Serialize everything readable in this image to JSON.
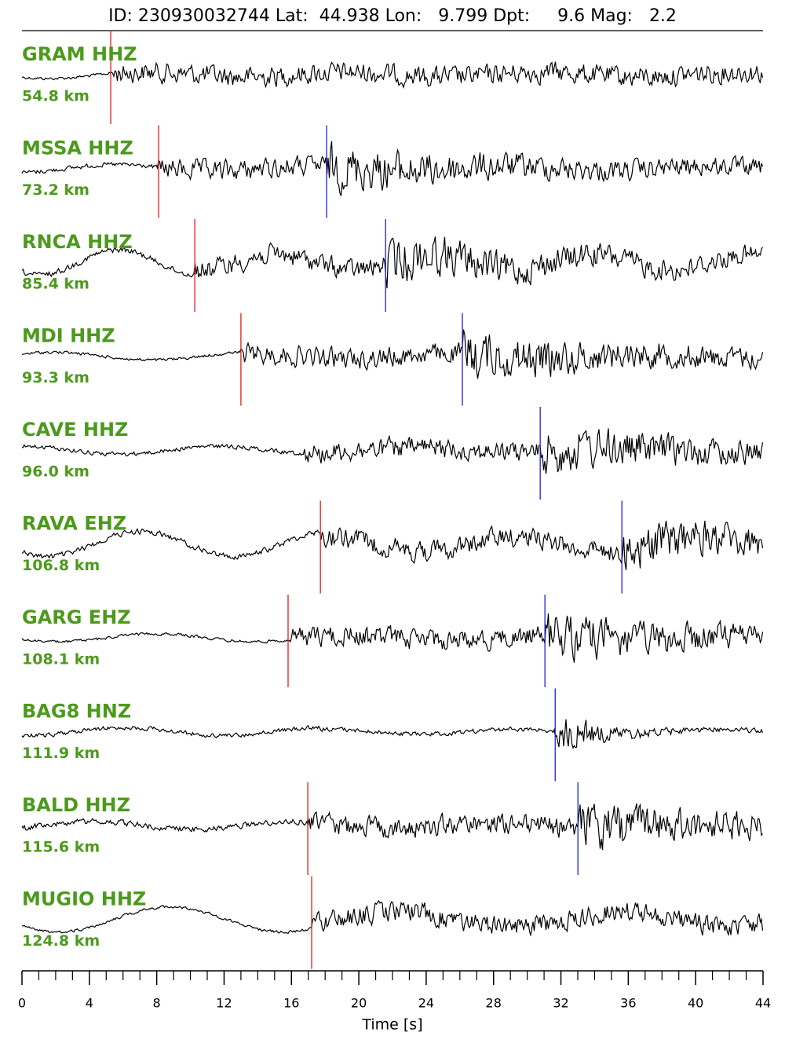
{
  "chart_data": {
    "type": "seismogram",
    "title": "ID: 230930032744 Lat:  44.938 Lon:   9.799 Dpt:     9.6 Mag:   2.2",
    "xlabel": "Time [s]",
    "xlim": [
      0,
      44
    ],
    "xticks": [
      0,
      4,
      8,
      12,
      16,
      20,
      24,
      28,
      32,
      36,
      40,
      44
    ],
    "xminorticks": [
      1,
      2,
      3,
      5,
      6,
      7,
      9,
      10,
      11,
      13,
      14,
      15,
      17,
      18,
      19,
      21,
      22,
      23,
      25,
      26,
      27,
      29,
      30,
      31,
      33,
      34,
      35,
      37,
      38,
      39,
      41,
      42,
      43
    ],
    "label_color": "#4c9a1c",
    "p_color": "#e31a1c",
    "s_color": "#1f1fd6",
    "trace_color": "#000000",
    "traces": [
      {
        "station": "GRAM HHZ",
        "distance": "54.8 km",
        "p": 5.27
      },
      {
        "station": "MSSA HHZ",
        "distance": "73.2 km",
        "p": 8.11,
        "s": 18.09
      },
      {
        "station": "RNCA HHZ",
        "distance": "85.4 km",
        "p": 10.26,
        "s": 21.59
      },
      {
        "station": "MDI HHZ",
        "distance": "93.3 km",
        "p": 13.0,
        "s": 26.15
      },
      {
        "station": "CAVE HHZ",
        "distance": "96.0 km",
        "s": 30.77
      },
      {
        "station": "RAVA EHZ",
        "distance": "106.8 km",
        "p": 17.72,
        "s": 35.62
      },
      {
        "station": "GARG EHZ",
        "distance": "108.1 km",
        "p": 15.8,
        "s": 31.05
      },
      {
        "station": "BAG8 HNZ",
        "distance": "111.9 km",
        "s": 31.66
      },
      {
        "station": "BALD HHZ",
        "distance": "115.6 km",
        "p": 16.97,
        "s": 33.01
      },
      {
        "station": "MUGIO HHZ",
        "distance": "124.8 km",
        "p": 17.2
      }
    ]
  }
}
